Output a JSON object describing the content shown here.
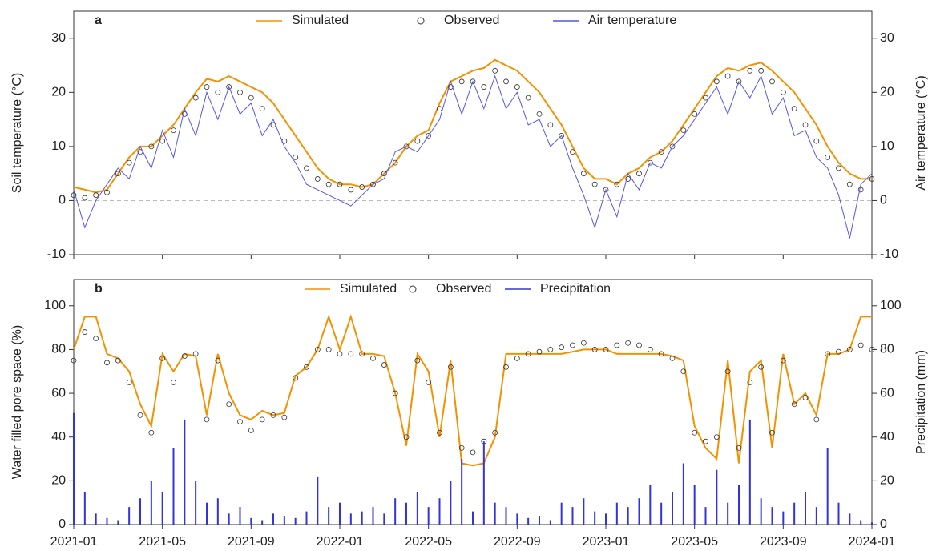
{
  "chart_data": [
    {
      "type": "line",
      "panel": "a",
      "ylabel": "Soil temperature (°C)",
      "y2label": "Air temperature (°C)",
      "x": [
        0,
        0.5,
        1,
        1.5,
        2,
        2.5,
        3,
        3.5,
        4,
        4.5,
        5,
        5.5,
        6,
        6.5,
        7,
        7.5,
        8,
        8.5,
        9,
        9.5,
        10,
        10.5,
        11,
        11.5,
        12,
        12.5,
        13,
        13.5,
        14,
        14.5,
        15,
        15.5,
        16,
        16.5,
        17,
        17.5,
        18,
        18.5,
        19,
        19.5,
        20,
        20.5,
        21,
        21.5,
        22,
        22.5,
        23,
        23.5,
        24,
        24.5,
        25,
        25.5,
        26,
        26.5,
        27,
        27.5,
        28,
        28.5,
        29,
        29.5,
        30,
        30.5,
        31,
        31.5,
        32,
        32.5,
        33,
        33.5,
        34,
        34.5,
        35,
        35.5,
        36
      ],
      "xlim": [
        0,
        36
      ],
      "xticks": [
        0,
        4,
        8,
        12,
        16,
        20,
        24,
        28,
        32,
        36
      ],
      "ylim": [
        -10,
        35
      ],
      "yticks": [
        -10,
        0,
        10,
        20,
        30
      ],
      "y2lim": [
        -10,
        35
      ],
      "y2ticks": [
        -10,
        0,
        10,
        20,
        30
      ],
      "hline": 0,
      "series": [
        {
          "name": "Simulated",
          "color": "#f39200",
          "style": "line",
          "values": [
            2.5,
            2,
            1.5,
            2,
            5,
            8,
            10,
            10,
            12,
            14,
            17,
            20,
            22.5,
            22,
            23,
            22,
            21,
            20,
            18,
            15,
            12,
            9,
            6,
            4,
            3,
            3,
            2.5,
            3,
            5,
            7,
            10,
            12,
            13,
            18,
            22,
            23,
            24,
            24.5,
            26,
            25,
            24,
            22,
            20,
            17,
            14,
            10,
            6,
            4,
            4,
            3,
            5,
            6,
            8,
            9,
            11,
            14,
            17,
            20,
            23,
            24.5,
            24,
            25,
            25.5,
            24,
            22,
            20,
            17,
            14,
            10,
            7,
            5,
            4,
            4
          ]
        },
        {
          "name": "Observed",
          "color": "#333333",
          "style": "points",
          "values": [
            1,
            0.5,
            1,
            1.5,
            5,
            7,
            9,
            10,
            11,
            13,
            16,
            19,
            21,
            20,
            21,
            20,
            19,
            17,
            14,
            11,
            8,
            6,
            4,
            3,
            3,
            2,
            2.5,
            3,
            5,
            7,
            10,
            11,
            12,
            17,
            21,
            22,
            22,
            21,
            24,
            22,
            21,
            19,
            16,
            14,
            12,
            9,
            5,
            3,
            2,
            3,
            4,
            5,
            7,
            9,
            10,
            13,
            16,
            19,
            22,
            23,
            22,
            24,
            24,
            22,
            20,
            17,
            14,
            11,
            8,
            6,
            3,
            2,
            4
          ]
        },
        {
          "name": "Air temperature",
          "color": "#5555e6",
          "style": "line",
          "axis": "y2",
          "values": [
            2,
            -5,
            0,
            3,
            6,
            4,
            10,
            6,
            13,
            8,
            17,
            12,
            20,
            15,
            21,
            16,
            18,
            12,
            15,
            10,
            7,
            3,
            2,
            1,
            0,
            -1,
            1,
            3,
            4,
            9,
            10,
            9,
            12,
            15,
            22,
            16,
            22,
            17,
            23,
            17,
            20,
            14,
            15,
            10,
            12,
            6,
            1,
            -5,
            2,
            -3,
            5,
            2,
            7,
            6,
            10,
            12,
            15,
            18,
            21,
            16,
            22,
            19,
            23,
            16,
            19,
            12,
            13,
            8,
            6,
            1,
            -7,
            3,
            5
          ]
        }
      ]
    },
    {
      "type": "line",
      "panel": "b",
      "ylabel": "Water filled pore space (%)",
      "y2label": "Precipitation (mm)",
      "x": [
        0,
        0.5,
        1,
        1.5,
        2,
        2.5,
        3,
        3.5,
        4,
        4.5,
        5,
        5.5,
        6,
        6.5,
        7,
        7.5,
        8,
        8.5,
        9,
        9.5,
        10,
        10.5,
        11,
        11.5,
        12,
        12.5,
        13,
        13.5,
        14,
        14.5,
        15,
        15.5,
        16,
        16.5,
        17,
        17.5,
        18,
        18.5,
        19,
        19.5,
        20,
        20.5,
        21,
        21.5,
        22,
        22.5,
        23,
        23.5,
        24,
        24.5,
        25,
        25.5,
        26,
        26.5,
        27,
        27.5,
        28,
        28.5,
        29,
        29.5,
        30,
        30.5,
        31,
        31.5,
        32,
        32.5,
        33,
        33.5,
        34,
        34.5,
        35,
        35.5,
        36
      ],
      "xlim": [
        0,
        36
      ],
      "xticks": [
        {
          "value": 0,
          "label": "2021-01"
        },
        {
          "value": 4,
          "label": "2021-05"
        },
        {
          "value": 8,
          "label": "2021-09"
        },
        {
          "value": 12,
          "label": "2022-01"
        },
        {
          "value": 16,
          "label": "2022-05"
        },
        {
          "value": 20,
          "label": "2022-09"
        },
        {
          "value": 24,
          "label": "2023-01"
        },
        {
          "value": 28,
          "label": "2023-05"
        },
        {
          "value": 32,
          "label": "2023-09"
        },
        {
          "value": 36,
          "label": "2024-01"
        }
      ],
      "ylim": [
        0,
        112
      ],
      "yticks": [
        0,
        20,
        40,
        60,
        80,
        100
      ],
      "y2lim": [
        0,
        112
      ],
      "y2ticks": [
        0,
        20,
        40,
        60,
        80,
        100
      ],
      "series": [
        {
          "name": "Simulated",
          "color": "#f39200",
          "style": "line",
          "values": [
            80,
            95,
            95,
            78,
            76,
            70,
            55,
            45,
            78,
            70,
            78,
            77,
            50,
            78,
            60,
            50,
            48,
            52,
            50,
            51,
            68,
            72,
            80,
            95,
            80,
            95,
            78,
            78,
            77,
            60,
            36,
            78,
            70,
            40,
            75,
            28,
            27,
            28,
            40,
            78,
            78,
            78,
            78,
            78,
            78,
            79,
            80,
            80,
            80,
            78,
            78,
            78,
            78,
            78,
            77,
            75,
            45,
            35,
            30,
            75,
            28,
            70,
            75,
            35,
            78,
            55,
            60,
            50,
            78,
            78,
            80,
            95,
            95
          ]
        },
        {
          "name": "Observed",
          "color": "#333333",
          "style": "points",
          "values": [
            75,
            88,
            85,
            74,
            75,
            65,
            50,
            42,
            76,
            65,
            77,
            78,
            48,
            75,
            55,
            47,
            43,
            48,
            50,
            49,
            67,
            72,
            80,
            80,
            78,
            78,
            78,
            76,
            73,
            60,
            40,
            75,
            65,
            42,
            72,
            35,
            33,
            38,
            42,
            72,
            76,
            78,
            79,
            80,
            81,
            82,
            83,
            80,
            80,
            82,
            83,
            82,
            80,
            78,
            76,
            70,
            42,
            38,
            40,
            70,
            35,
            65,
            72,
            42,
            75,
            55,
            58,
            48,
            78,
            79,
            80,
            82,
            80
          ]
        },
        {
          "name": "Precipitation",
          "color": "#3333dd",
          "style": "bars",
          "axis": "y2",
          "values": [
            51,
            15,
            5,
            3,
            2,
            8,
            12,
            20,
            15,
            35,
            48,
            20,
            10,
            12,
            5,
            8,
            3,
            2,
            5,
            4,
            3,
            6,
            22,
            8,
            10,
            5,
            6,
            8,
            5,
            12,
            10,
            15,
            8,
            12,
            20,
            30,
            6,
            38,
            10,
            8,
            5,
            3,
            4,
            2,
            10,
            8,
            12,
            6,
            5,
            10,
            8,
            12,
            18,
            10,
            15,
            28,
            18,
            8,
            25,
            10,
            18,
            48,
            12,
            8,
            6,
            10,
            15,
            8,
            35,
            10,
            5,
            2,
            1
          ]
        }
      ]
    }
  ]
}
